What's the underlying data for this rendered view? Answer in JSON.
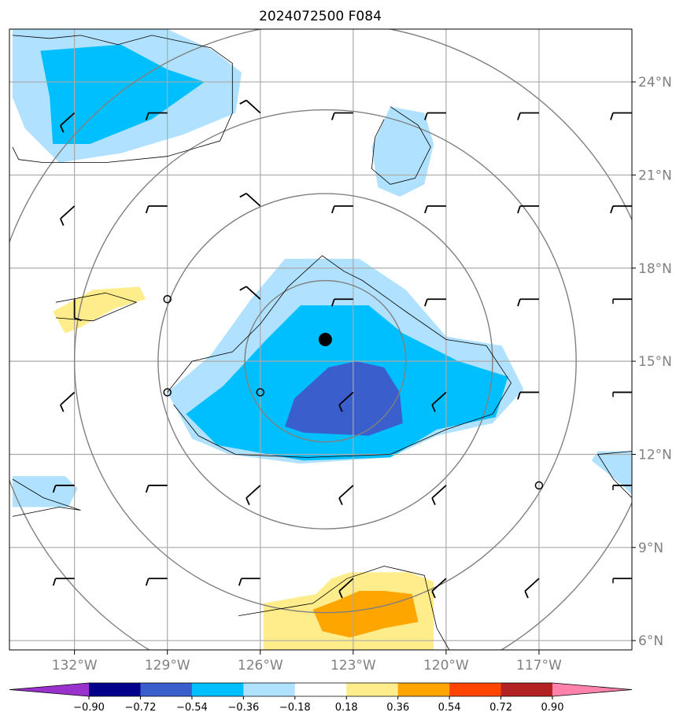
{
  "chart_data": {
    "type": "heatmap",
    "title": "2024072500 F084",
    "x_axis": {
      "ticks": [
        -132,
        -129,
        -126,
        -123,
        -120,
        -117
      ],
      "tick_labels": [
        "132°W",
        "129°W",
        "126°W",
        "123°W",
        "120°W",
        "117°W"
      ],
      "range": [
        -134.1,
        -114.0
      ]
    },
    "y_axis": {
      "ticks": [
        24,
        21,
        18,
        15,
        12,
        9,
        6
      ],
      "tick_labels": [
        "24°N",
        "21°N",
        "18°N",
        "15°N",
        "12°N",
        "9°N",
        "6°N"
      ],
      "range": [
        5.7,
        25.7
      ]
    },
    "grid": true,
    "colorbar": {
      "orientation": "horizontal",
      "location": "bottom",
      "boundaries": [
        -0.9,
        -0.72,
        -0.54,
        -0.36,
        -0.18,
        0.18,
        0.36,
        0.54,
        0.72,
        0.9
      ],
      "tick_labels": [
        "−0.90",
        "−0.72",
        "−0.54",
        "−0.36",
        "−0.18",
        "0.18",
        "0.36",
        "0.54",
        "0.72",
        "0.90"
      ],
      "colors": [
        "#9932cc",
        "#00008b",
        "#3a5fcd",
        "#00bfff",
        "#b0e2ff",
        "#ffffff",
        "#ffec8b",
        "#ffa500",
        "#ff4500",
        "#b22222",
        "#ff82ab"
      ]
    },
    "storm_center": {
      "lon": -123.9,
      "lat": 15.7
    },
    "range_rings_center": {
      "lon": -123.9,
      "lat": 15.0
    },
    "range_ring_radii_deg": [
      2.6,
      5.4,
      8.1,
      10.9
    ],
    "calm_points": [
      {
        "lon": -129.0,
        "lat": 17.0
      },
      {
        "lon": -129.0,
        "lat": 14.0
      },
      {
        "lon": -126.0,
        "lat": 14.0
      },
      {
        "lon": -117.0,
        "lat": 11.0
      }
    ],
    "wind_barb_grid": {
      "lons": [
        -132,
        -129,
        -126,
        -123,
        -120,
        -117,
        -114
      ],
      "lats": [
        23,
        20,
        17,
        14,
        11,
        8
      ]
    },
    "filled_regions": [
      {
        "level": "-0.18 to -0.36",
        "color": "#b0e2ff",
        "points": [
          [
            -134.0,
            25.7
          ],
          [
            -129.0,
            25.7
          ],
          [
            -127.5,
            25.0
          ],
          [
            -126.6,
            24.3
          ],
          [
            -126.8,
            23.0
          ],
          [
            -128.5,
            22.3
          ],
          [
            -130.5,
            21.7
          ],
          [
            -132.5,
            21.4
          ],
          [
            -133.6,
            22.5
          ],
          [
            -134.0,
            23.5
          ]
        ]
      },
      {
        "level": "-0.36 to -0.54",
        "color": "#00bfff",
        "points": [
          [
            -133.1,
            25.0
          ],
          [
            -130.5,
            25.2
          ],
          [
            -129.0,
            24.4
          ],
          [
            -127.8,
            24.0
          ],
          [
            -129.5,
            22.8
          ],
          [
            -131.5,
            22.0
          ],
          [
            -132.7,
            22.0
          ],
          [
            -132.8,
            23.5
          ]
        ]
      },
      {
        "level": "-0.18 to -0.36",
        "color": "#b0e2ff",
        "points": [
          [
            -121.8,
            23.2
          ],
          [
            -120.7,
            23.0
          ],
          [
            -120.4,
            22.0
          ],
          [
            -120.7,
            20.7
          ],
          [
            -121.5,
            20.3
          ],
          [
            -122.2,
            20.6
          ],
          [
            -122.4,
            21.9
          ]
        ]
      },
      {
        "level": "-0.18 to -0.36",
        "color": "#b0e2ff",
        "points": [
          [
            -126.3,
            17.0
          ],
          [
            -125.2,
            18.3
          ],
          [
            -122.8,
            18.3
          ],
          [
            -121.3,
            17.3
          ],
          [
            -120.0,
            15.8
          ],
          [
            -118.2,
            15.5
          ],
          [
            -117.5,
            14.1
          ],
          [
            -118.5,
            13.0
          ],
          [
            -120.3,
            12.6
          ],
          [
            -121.8,
            11.9
          ],
          [
            -124.7,
            11.7
          ],
          [
            -127.0,
            12.0
          ],
          [
            -128.2,
            12.5
          ],
          [
            -129.0,
            14.0
          ],
          [
            -127.6,
            15.2
          ]
        ]
      },
      {
        "level": "-0.36 to -0.54",
        "color": "#00bfff",
        "points": [
          [
            -125.8,
            15.7
          ],
          [
            -124.7,
            16.8
          ],
          [
            -122.5,
            16.8
          ],
          [
            -121.4,
            15.9
          ],
          [
            -119.6,
            15.0
          ],
          [
            -118.0,
            14.5
          ],
          [
            -118.4,
            13.2
          ],
          [
            -120.3,
            12.8
          ],
          [
            -121.8,
            11.9
          ],
          [
            -124.6,
            11.8
          ],
          [
            -127.4,
            12.3
          ],
          [
            -128.4,
            13.3
          ],
          [
            -127.2,
            14.2
          ]
        ]
      },
      {
        "level": "-0.54 to -0.72",
        "color": "#3a5fcd",
        "points": [
          [
            -123.8,
            14.8
          ],
          [
            -122.9,
            15.0
          ],
          [
            -122.0,
            14.8
          ],
          [
            -121.5,
            14.0
          ],
          [
            -121.4,
            13.0
          ],
          [
            -122.5,
            12.6
          ],
          [
            -124.6,
            12.7
          ],
          [
            -125.2,
            12.9
          ],
          [
            -124.9,
            13.8
          ]
        ]
      },
      {
        "level": "0.18 to 0.36",
        "color": "#ffec8b",
        "points": [
          [
            -132.7,
            16.6
          ],
          [
            -131.4,
            17.3
          ],
          [
            -129.9,
            17.4
          ],
          [
            -129.7,
            17.0
          ],
          [
            -130.7,
            16.7
          ],
          [
            -131.8,
            16.1
          ],
          [
            -132.3,
            15.9
          ]
        ]
      },
      {
        "level": "-0.18 to -0.36",
        "color": "#b0e2ff",
        "points": [
          [
            -134.0,
            11.3
          ],
          [
            -132.3,
            11.3
          ],
          [
            -131.9,
            10.9
          ],
          [
            -132.2,
            10.3
          ],
          [
            -134.0,
            10.3
          ]
        ]
      },
      {
        "level": "-0.18 to -0.36",
        "color": "#b0e2ff",
        "points": [
          [
            -114.0,
            12.1
          ],
          [
            -115.1,
            12.1
          ],
          [
            -115.3,
            11.8
          ],
          [
            -114.3,
            11.0
          ],
          [
            -114.0,
            10.7
          ]
        ]
      },
      {
        "level": "0.18 to 0.36",
        "color": "#ffec8b",
        "points": [
          [
            -125.9,
            7.2
          ],
          [
            -124.2,
            7.5
          ],
          [
            -123.7,
            8.0
          ],
          [
            -123.1,
            8.2
          ],
          [
            -121.2,
            8.2
          ],
          [
            -120.4,
            7.9
          ],
          [
            -120.4,
            5.7
          ],
          [
            -125.9,
            5.7
          ]
        ]
      },
      {
        "level": "0.36 to 0.54",
        "color": "#ffa500",
        "points": [
          [
            -124.3,
            7.0
          ],
          [
            -123.5,
            7.3
          ],
          [
            -122.8,
            7.6
          ],
          [
            -122.0,
            7.6
          ],
          [
            -121.1,
            7.5
          ],
          [
            -120.9,
            6.6
          ],
          [
            -122.0,
            6.4
          ],
          [
            -123.1,
            6.1
          ],
          [
            -124.0,
            6.3
          ]
        ]
      }
    ],
    "outline_lines": [
      [
        [
          -134.0,
          21.9
        ],
        [
          -133.8,
          21.5
        ],
        [
          -133.0,
          21.4
        ],
        [
          -131.0,
          21.4
        ],
        [
          -129.0,
          21.6
        ],
        [
          -127.3,
          22.1
        ],
        [
          -126.9,
          23.0
        ],
        [
          -126.9,
          24.6
        ],
        [
          -127.6,
          25.1
        ],
        [
          -129.5,
          25.5
        ],
        [
          -130.6,
          25.2
        ],
        [
          -131.8,
          25.5
        ],
        [
          -132.8,
          25.4
        ],
        [
          -134.0,
          25.5
        ]
      ],
      [
        [
          -121.8,
          23.2
        ],
        [
          -120.9,
          22.6
        ],
        [
          -120.5,
          21.9
        ],
        [
          -121.0,
          20.9
        ],
        [
          -121.8,
          20.7
        ],
        [
          -122.4,
          21.2
        ],
        [
          -122.3,
          22.2
        ],
        [
          -122.0,
          22.8
        ]
      ],
      [
        [
          -129.0,
          14.0
        ],
        [
          -128.2,
          15.0
        ],
        [
          -126.9,
          15.3
        ],
        [
          -126.0,
          16.2
        ],
        [
          -125.1,
          17.4
        ],
        [
          -124.0,
          18.4
        ],
        [
          -123.3,
          17.9
        ],
        [
          -122.7,
          17.6
        ],
        [
          -121.3,
          16.6
        ],
        [
          -120.0,
          15.7
        ],
        [
          -118.7,
          15.5
        ],
        [
          -117.9,
          14.3
        ],
        [
          -118.5,
          13.3
        ],
        [
          -120.0,
          12.8
        ],
        [
          -121.8,
          12.0
        ],
        [
          -124.5,
          11.9
        ],
        [
          -126.8,
          12.0
        ],
        [
          -128.0,
          12.6
        ],
        [
          -128.8,
          13.6
        ]
      ],
      [
        [
          -132.6,
          16.9
        ],
        [
          -131.0,
          17.2
        ],
        [
          -130.0,
          16.9
        ],
        [
          -131.4,
          16.3
        ],
        [
          -132.6,
          16.4
        ]
      ],
      [
        [
          -134.0,
          10.0
        ],
        [
          -133.0,
          10.2
        ],
        [
          -132.5,
          10.3
        ],
        [
          -131.8,
          10.2
        ],
        [
          -133.0,
          10.6
        ],
        [
          -134.0,
          11.2
        ]
      ],
      [
        [
          -114.0,
          12.1
        ],
        [
          -115.1,
          12.0
        ],
        [
          -114.6,
          11.2
        ],
        [
          -114.0,
          10.6
        ]
      ],
      [
        [
          -126.7,
          6.8
        ],
        [
          -124.3,
          7.2
        ],
        [
          -123.2,
          8.0
        ],
        [
          -122.0,
          8.4
        ],
        [
          -120.7,
          8.1
        ],
        [
          -120.3,
          6.4
        ],
        [
          -119.9,
          5.7
        ]
      ]
    ],
    "wind_barbs": [
      {
        "lon": -132,
        "lat": 23,
        "dir": "NE",
        "barbs": 1
      },
      {
        "lon": -129,
        "lat": 23,
        "dir": "E",
        "barbs": 1
      },
      {
        "lon": -126,
        "lat": 23,
        "dir": "SE",
        "barbs": 1
      },
      {
        "lon": -123,
        "lat": 23,
        "dir": "E",
        "barbs": 1
      },
      {
        "lon": -120,
        "lat": 23,
        "dir": "E",
        "barbs": 1
      },
      {
        "lon": -117,
        "lat": 23,
        "dir": "E",
        "barbs": 1
      },
      {
        "lon": -114,
        "lat": 23,
        "dir": "E",
        "barbs": 1
      },
      {
        "lon": -132,
        "lat": 20,
        "dir": "NE",
        "barbs": 1
      },
      {
        "lon": -129,
        "lat": 20,
        "dir": "E",
        "barbs": 1
      },
      {
        "lon": -126,
        "lat": 20,
        "dir": "SE",
        "barbs": 1
      },
      {
        "lon": -123,
        "lat": 20,
        "dir": "E",
        "barbs": 1
      },
      {
        "lon": -120,
        "lat": 20,
        "dir": "E",
        "barbs": 1
      },
      {
        "lon": -117,
        "lat": 20,
        "dir": "E",
        "barbs": 1
      },
      {
        "lon": -114,
        "lat": 20,
        "dir": "E",
        "barbs": 1
      },
      {
        "lon": -132,
        "lat": 17,
        "dir": "N",
        "barbs": 1
      },
      {
        "lon": -126,
        "lat": 17,
        "dir": "SE",
        "barbs": 1
      },
      {
        "lon": -123,
        "lat": 17,
        "dir": "E",
        "barbs": 1
      },
      {
        "lon": -120,
        "lat": 17,
        "dir": "E",
        "barbs": 1
      },
      {
        "lon": -117,
        "lat": 17,
        "dir": "E",
        "barbs": 1
      },
      {
        "lon": -114,
        "lat": 17,
        "dir": "E",
        "barbs": 0
      },
      {
        "lon": -132,
        "lat": 14,
        "dir": "NE",
        "barbs": 1
      },
      {
        "lon": -123,
        "lat": 14,
        "dir": "NE",
        "barbs": 1
      },
      {
        "lon": -120,
        "lat": 14,
        "dir": "NE",
        "barbs": 1
      },
      {
        "lon": -117,
        "lat": 14,
        "dir": "E",
        "barbs": 1
      },
      {
        "lon": -114,
        "lat": 14,
        "dir": "E",
        "barbs": 0
      },
      {
        "lon": -132,
        "lat": 11,
        "dir": "E",
        "barbs": 1
      },
      {
        "lon": -129,
        "lat": 11,
        "dir": "E",
        "barbs": 1
      },
      {
        "lon": -126,
        "lat": 11,
        "dir": "NE",
        "barbs": 1
      },
      {
        "lon": -123,
        "lat": 11,
        "dir": "NE",
        "barbs": 1
      },
      {
        "lon": -120,
        "lat": 11,
        "dir": "NE",
        "barbs": 1
      },
      {
        "lon": -114,
        "lat": 11,
        "dir": "E",
        "barbs": 0
      },
      {
        "lon": -132,
        "lat": 8,
        "dir": "E",
        "barbs": 1
      },
      {
        "lon": -129,
        "lat": 8,
        "dir": "E",
        "barbs": 1
      },
      {
        "lon": -126,
        "lat": 8,
        "dir": "E",
        "barbs": 1
      },
      {
        "lon": -123,
        "lat": 8,
        "dir": "NE",
        "barbs": 1
      },
      {
        "lon": -120,
        "lat": 8,
        "dir": "NE",
        "barbs": 1
      },
      {
        "lon": -117,
        "lat": 8,
        "dir": "NE",
        "barbs": 1
      },
      {
        "lon": -114,
        "lat": 8,
        "dir": "E",
        "barbs": 0
      }
    ]
  }
}
